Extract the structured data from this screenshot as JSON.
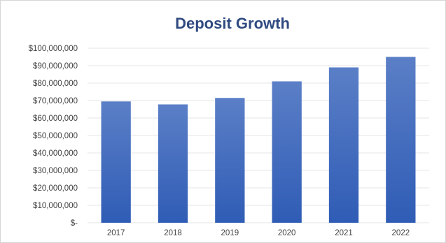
{
  "chart_data": {
    "type": "bar",
    "title": "Deposit Growth",
    "categories": [
      "2017",
      "2018",
      "2019",
      "2020",
      "2021",
      "2022"
    ],
    "values": [
      69500000,
      67800000,
      71500000,
      81000000,
      89000000,
      95000000
    ],
    "ylim": [
      0,
      100000000
    ],
    "y_tick_values": [
      0,
      10000000,
      20000000,
      30000000,
      40000000,
      50000000,
      60000000,
      70000000,
      80000000,
      90000000,
      100000000
    ],
    "y_tick_labels": [
      "$-",
      "$10,000,000",
      "$20,000,000",
      "$30,000,000",
      "$40,000,000",
      "$50,000,000",
      "$60,000,000",
      "$70,000,000",
      "$80,000,000",
      "$90,000,000",
      "$100,000,000"
    ],
    "grid": true,
    "legend": "none",
    "bar_color_top": "#5b7fc7",
    "bar_color_bottom": "#2f5cb5"
  }
}
